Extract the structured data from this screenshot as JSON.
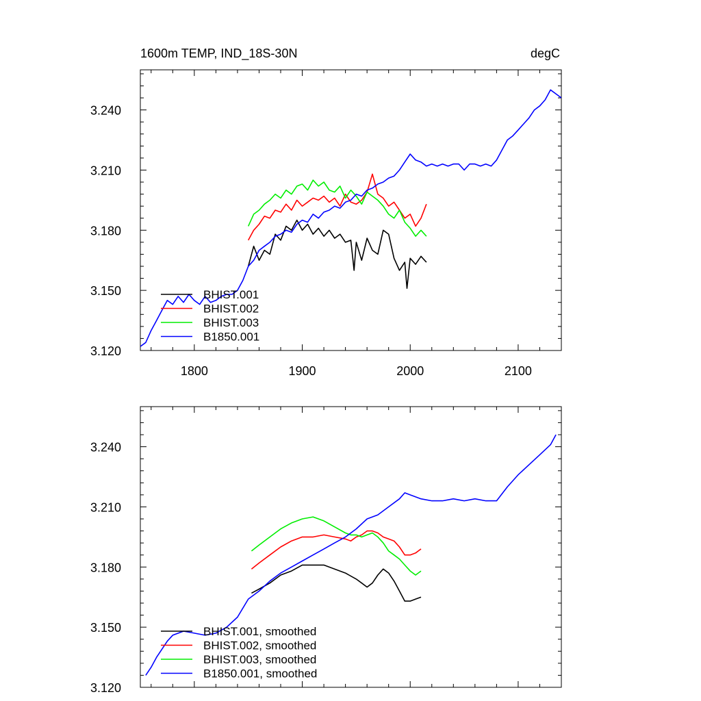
{
  "chart_data": [
    {
      "type": "line",
      "title": "1600m TEMP, IND_18S-30N",
      "units": "degC",
      "xlabel": "",
      "ylabel": "",
      "xlim": [
        1750,
        2140
      ],
      "ylim": [
        3.12,
        3.26
      ],
      "x_ticks": [
        "1800",
        "1900",
        "2000",
        "2100"
      ],
      "y_ticks": [
        "3.120",
        "3.150",
        "3.180",
        "3.210",
        "3.240"
      ],
      "legend_position": "bottom-left",
      "series": [
        {
          "name": "BHIST.001",
          "color": "#000000",
          "x": [
            1850,
            1855,
            1860,
            1865,
            1870,
            1875,
            1880,
            1885,
            1890,
            1895,
            1900,
            1905,
            1910,
            1915,
            1920,
            1925,
            1930,
            1935,
            1940,
            1945,
            1948,
            1950,
            1955,
            1960,
            1965,
            1970,
            1975,
            1980,
            1985,
            1990,
            1995,
            1997,
            2000,
            2005,
            2010,
            2015
          ],
          "y": [
            3.162,
            3.172,
            3.165,
            3.17,
            3.168,
            3.178,
            3.175,
            3.182,
            3.18,
            3.185,
            3.18,
            3.183,
            3.178,
            3.181,
            3.177,
            3.18,
            3.176,
            3.178,
            3.174,
            3.175,
            3.16,
            3.174,
            3.165,
            3.176,
            3.17,
            3.168,
            3.18,
            3.178,
            3.166,
            3.16,
            3.164,
            3.151,
            3.166,
            3.163,
            3.167,
            3.164
          ]
        },
        {
          "name": "BHIST.002",
          "color": "#ff0000",
          "x": [
            1850,
            1855,
            1860,
            1865,
            1870,
            1875,
            1880,
            1885,
            1890,
            1895,
            1900,
            1905,
            1910,
            1915,
            1920,
            1925,
            1930,
            1935,
            1940,
            1945,
            1950,
            1955,
            1960,
            1965,
            1970,
            1975,
            1980,
            1985,
            1990,
            1995,
            2000,
            2005,
            2010,
            2015
          ],
          "y": [
            3.175,
            3.18,
            3.183,
            3.187,
            3.186,
            3.19,
            3.189,
            3.193,
            3.19,
            3.195,
            3.192,
            3.194,
            3.196,
            3.195,
            3.197,
            3.194,
            3.196,
            3.192,
            3.198,
            3.194,
            3.193,
            3.195,
            3.199,
            3.208,
            3.198,
            3.196,
            3.192,
            3.194,
            3.19,
            3.186,
            3.188,
            3.182,
            3.186,
            3.193
          ]
        },
        {
          "name": "BHIST.003",
          "color": "#00ee00",
          "x": [
            1850,
            1855,
            1860,
            1865,
            1870,
            1875,
            1880,
            1885,
            1890,
            1895,
            1900,
            1905,
            1910,
            1915,
            1920,
            1925,
            1930,
            1935,
            1940,
            1945,
            1950,
            1955,
            1960,
            1965,
            1970,
            1975,
            1980,
            1985,
            1990,
            1995,
            2000,
            2005,
            2010,
            2015
          ],
          "y": [
            3.182,
            3.188,
            3.19,
            3.193,
            3.195,
            3.198,
            3.196,
            3.2,
            3.198,
            3.202,
            3.203,
            3.2,
            3.205,
            3.202,
            3.204,
            3.2,
            3.199,
            3.202,
            3.196,
            3.2,
            3.197,
            3.193,
            3.199,
            3.197,
            3.195,
            3.192,
            3.188,
            3.186,
            3.19,
            3.184,
            3.181,
            3.177,
            3.18,
            3.177
          ]
        },
        {
          "name": "B1850.001",
          "color": "#0000ff",
          "x": [
            1750,
            1755,
            1760,
            1765,
            1770,
            1775,
            1780,
            1785,
            1790,
            1795,
            1800,
            1805,
            1810,
            1815,
            1820,
            1825,
            1830,
            1835,
            1840,
            1845,
            1850,
            1855,
            1860,
            1865,
            1870,
            1875,
            1880,
            1885,
            1890,
            1895,
            1900,
            1905,
            1910,
            1915,
            1920,
            1925,
            1930,
            1935,
            1940,
            1945,
            1950,
            1955,
            1960,
            1965,
            1970,
            1975,
            1980,
            1985,
            1990,
            1995,
            2000,
            2005,
            2010,
            2015,
            2020,
            2025,
            2030,
            2035,
            2040,
            2045,
            2050,
            2055,
            2060,
            2065,
            2070,
            2075,
            2080,
            2085,
            2090,
            2095,
            2100,
            2105,
            2110,
            2115,
            2120,
            2125,
            2130,
            2135,
            2140
          ],
          "y": [
            3.122,
            3.124,
            3.13,
            3.135,
            3.14,
            3.145,
            3.143,
            3.147,
            3.144,
            3.148,
            3.145,
            3.143,
            3.147,
            3.144,
            3.145,
            3.147,
            3.148,
            3.148,
            3.15,
            3.155,
            3.162,
            3.165,
            3.17,
            3.172,
            3.174,
            3.177,
            3.178,
            3.18,
            3.179,
            3.183,
            3.185,
            3.184,
            3.188,
            3.186,
            3.189,
            3.19,
            3.192,
            3.191,
            3.194,
            3.195,
            3.198,
            3.197,
            3.2,
            3.201,
            3.203,
            3.204,
            3.206,
            3.207,
            3.21,
            3.214,
            3.218,
            3.215,
            3.214,
            3.212,
            3.213,
            3.212,
            3.213,
            3.212,
            3.213,
            3.213,
            3.21,
            3.213,
            3.213,
            3.212,
            3.213,
            3.212,
            3.215,
            3.22,
            3.225,
            3.227,
            3.23,
            3.233,
            3.236,
            3.24,
            3.242,
            3.245,
            3.25,
            3.248,
            3.246
          ]
        }
      ]
    },
    {
      "type": "line",
      "title": "",
      "units": "",
      "xlabel": "",
      "ylabel": "",
      "xlim": [
        1750,
        2140
      ],
      "ylim": [
        3.12,
        3.26
      ],
      "x_ticks": [],
      "y_ticks": [
        "3.120",
        "3.150",
        "3.180",
        "3.210",
        "3.240"
      ],
      "legend_position": "bottom-left",
      "series": [
        {
          "name": "BHIST.001, smoothed",
          "color": "#000000",
          "x": [
            1853,
            1860,
            1870,
            1880,
            1890,
            1900,
            1910,
            1920,
            1930,
            1940,
            1950,
            1955,
            1960,
            1965,
            1970,
            1975,
            1980,
            1985,
            1990,
            1995,
            2000,
            2005,
            2010
          ],
          "y": [
            3.167,
            3.169,
            3.172,
            3.176,
            3.178,
            3.181,
            3.181,
            3.181,
            3.179,
            3.177,
            3.174,
            3.172,
            3.17,
            3.172,
            3.176,
            3.179,
            3.177,
            3.173,
            3.168,
            3.163,
            3.163,
            3.164,
            3.165
          ]
        },
        {
          "name": "BHIST.002, smoothed",
          "color": "#ff0000",
          "x": [
            1853,
            1860,
            1870,
            1880,
            1890,
            1900,
            1910,
            1920,
            1930,
            1940,
            1945,
            1950,
            1955,
            1960,
            1965,
            1970,
            1975,
            1980,
            1985,
            1990,
            1995,
            2000,
            2005,
            2010
          ],
          "y": [
            3.179,
            3.182,
            3.186,
            3.19,
            3.193,
            3.195,
            3.195,
            3.196,
            3.195,
            3.194,
            3.193,
            3.195,
            3.196,
            3.198,
            3.198,
            3.197,
            3.195,
            3.194,
            3.193,
            3.19,
            3.186,
            3.186,
            3.187,
            3.189
          ]
        },
        {
          "name": "BHIST.003, smoothed",
          "color": "#00ee00",
          "x": [
            1853,
            1860,
            1870,
            1880,
            1890,
            1900,
            1910,
            1920,
            1930,
            1940,
            1945,
            1950,
            1955,
            1960,
            1965,
            1970,
            1975,
            1980,
            1985,
            1990,
            1995,
            2000,
            2005,
            2010
          ],
          "y": [
            3.188,
            3.191,
            3.195,
            3.199,
            3.202,
            3.204,
            3.205,
            3.203,
            3.2,
            3.197,
            3.196,
            3.196,
            3.195,
            3.196,
            3.197,
            3.195,
            3.192,
            3.188,
            3.186,
            3.184,
            3.181,
            3.178,
            3.176,
            3.178
          ]
        },
        {
          "name": "B1850.001, smoothed",
          "color": "#0000ff",
          "x": [
            1755,
            1760,
            1765,
            1770,
            1775,
            1780,
            1790,
            1800,
            1810,
            1820,
            1830,
            1840,
            1850,
            1860,
            1870,
            1880,
            1890,
            1900,
            1910,
            1920,
            1930,
            1940,
            1950,
            1960,
            1970,
            1980,
            1990,
            1995,
            2000,
            2010,
            2020,
            2030,
            2040,
            2050,
            2060,
            2070,
            2080,
            2090,
            2100,
            2110,
            2120,
            2130,
            2135
          ],
          "y": [
            3.126,
            3.13,
            3.135,
            3.139,
            3.143,
            3.146,
            3.148,
            3.147,
            3.146,
            3.147,
            3.15,
            3.155,
            3.164,
            3.168,
            3.173,
            3.177,
            3.18,
            3.183,
            3.186,
            3.189,
            3.192,
            3.195,
            3.199,
            3.204,
            3.206,
            3.21,
            3.214,
            3.217,
            3.216,
            3.214,
            3.213,
            3.213,
            3.214,
            3.213,
            3.214,
            3.213,
            3.213,
            3.22,
            3.226,
            3.231,
            3.236,
            3.241,
            3.246
          ]
        }
      ]
    }
  ]
}
